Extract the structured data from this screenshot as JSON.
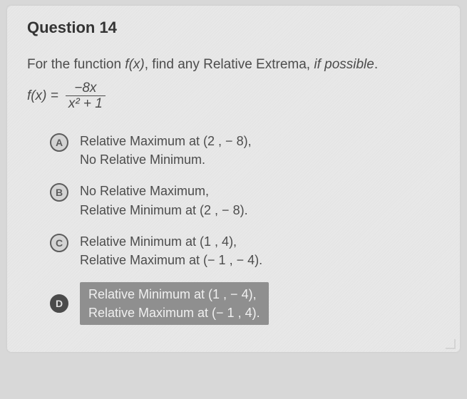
{
  "title": "Question 14",
  "prompt_pre": "For the function ",
  "prompt_fx": "f(x)",
  "prompt_mid": ", find any Relative Extrema, ",
  "prompt_if": "if possible",
  "prompt_end": ".",
  "fx_label": "f(x) =",
  "numerator": "−8x",
  "denominator": "x² + 1",
  "options": [
    {
      "letter": "A",
      "line1": "Relative Maximum at (2 , − 8),",
      "line2": "No Relative Minimum.",
      "selected": false
    },
    {
      "letter": "B",
      "line1": "No Relative Maximum,",
      "line2": "Relative Minimum at (2 , − 8).",
      "selected": false
    },
    {
      "letter": "C",
      "line1": "Relative Minimum at (1 , 4),",
      "line2": "Relative Maximum at (− 1 , − 4).",
      "selected": false
    },
    {
      "letter": "D",
      "line1": "Relative Minimum at (1 , − 4),",
      "line2": "Relative Maximum at (− 1 , 4).",
      "selected": true
    }
  ]
}
